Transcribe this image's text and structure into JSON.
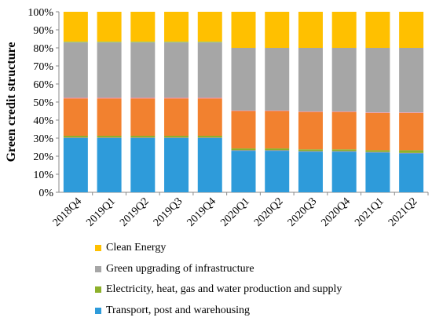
{
  "chart_data": {
    "type": "bar",
    "stacked": true,
    "percent": true,
    "ylabel": "Green credit structure",
    "xlabel": "",
    "ylim": [
      0,
      100
    ],
    "yticks": [
      "0%",
      "10%",
      "20%",
      "30%",
      "40%",
      "50%",
      "60%",
      "70%",
      "80%",
      "90%",
      "100%"
    ],
    "grid": false,
    "legend_position": "bottom",
    "categories": [
      "2018Q4",
      "2019Q1",
      "2019Q2",
      "2019Q3",
      "2019Q4",
      "2020Q1",
      "2020Q2",
      "2020Q3",
      "2020Q4",
      "2021Q1",
      "2021Q2"
    ],
    "series": [
      {
        "name": "Transport, post and warehousing",
        "color": "#2E9BDA",
        "values": [
          30,
          30,
          30,
          30,
          30,
          23,
          23,
          22.5,
          22.5,
          22,
          21.5
        ]
      },
      {
        "name": "",
        "color": "#9B87C2",
        "values": [
          0.3,
          0.3,
          0.3,
          0.3,
          0.3,
          0.3,
          0.3,
          0.3,
          0.3,
          0.3,
          0.3
        ]
      },
      {
        "name": "Electricity, heat, gas and water production and supply",
        "color": "#8DB02B",
        "values": [
          1,
          1,
          1,
          1,
          1,
          1,
          1,
          1,
          1,
          1,
          1.5
        ]
      },
      {
        "name": "",
        "color": "#F2812F",
        "values": [
          20.7,
          20.7,
          20.7,
          20.7,
          20.7,
          20.7,
          20.7,
          20.7,
          20.7,
          20.7,
          20.7
        ]
      },
      {
        "name": "",
        "color": "#F08FA8",
        "values": [
          0.4,
          0.4,
          0.4,
          0.4,
          0.4,
          0.3,
          0.3,
          0.3,
          0.3,
          0.3,
          0.3
        ]
      },
      {
        "name": "Green upgrading of infrastructure",
        "color": "#A6A6A6",
        "values": [
          30.6,
          30.6,
          30.6,
          30.6,
          30.6,
          34.7,
          34.7,
          35.2,
          35.2,
          35.7,
          35.7
        ]
      },
      {
        "name": "",
        "color": "#A3C96A",
        "values": [
          0.5,
          0.5,
          0.5,
          0.5,
          0.5,
          0,
          0,
          0,
          0,
          0,
          0
        ]
      },
      {
        "name": "Clean Energy",
        "color": "#FFC000",
        "values": [
          16.5,
          16.5,
          16.5,
          16.5,
          16.5,
          20,
          20,
          20,
          20,
          20,
          20
        ]
      }
    ],
    "legend": [
      {
        "label": "Clean Energy",
        "color": "#FFC000"
      },
      {
        "label": "Green upgrading of infrastructure",
        "color": "#A6A6A6"
      },
      {
        "label": "Electricity, heat, gas and water production and supply",
        "color": "#8DB02B"
      },
      {
        "label": "Transport, post and warehousing",
        "color": "#2E9BDA"
      }
    ]
  }
}
